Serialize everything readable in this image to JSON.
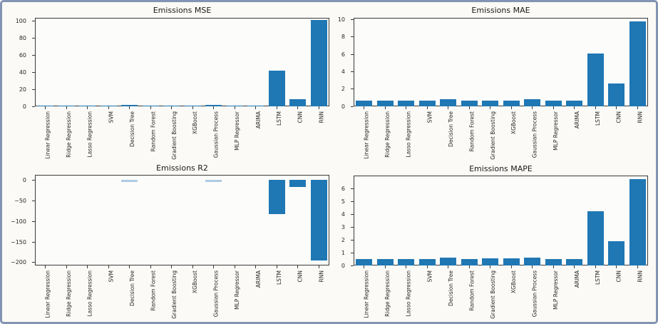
{
  "figure": {
    "border_color": "#8394b3",
    "background_color": "#fbfaf6",
    "bar_color": "#1f77b4",
    "light_bar_color": "#aecbe5",
    "spine_color": "#3a3a3a",
    "text_color": "#262626"
  },
  "chart_data": [
    {
      "type": "bar",
      "title": "Emissions MSE",
      "categories": [
        "Linear Regression",
        "Ridge Regression",
        "Lasso Regression",
        "SVM",
        "Decision Tree",
        "Random Forest",
        "Gradient Boosting",
        "XGBoost",
        "Gaussian Process",
        "MLP Regressor",
        "ARIMA",
        "LSTM",
        "CNN",
        "RNN"
      ],
      "values": [
        0.8,
        0.8,
        0.8,
        0.8,
        1.3,
        0.8,
        0.8,
        0.8,
        1.3,
        0.8,
        0.8,
        42,
        8,
        101
      ],
      "yticks": [
        0,
        20,
        40,
        60,
        80,
        100
      ],
      "ylim": [
        0,
        103.5
      ],
      "grid": false,
      "legend": "none"
    },
    {
      "type": "bar",
      "title": "Emissions MAE",
      "categories": [
        "Linear Regression",
        "Ridge Regression",
        "Lasso Regression",
        "SVM",
        "Decision Tree",
        "Random Forest",
        "Gradient Boosting",
        "XGBoost",
        "Gaussian Process",
        "MLP Regressor",
        "ARIMA",
        "LSTM",
        "CNN",
        "RNN"
      ],
      "values": [
        0.65,
        0.65,
        0.7,
        0.7,
        0.85,
        0.7,
        0.7,
        0.7,
        0.85,
        0.7,
        0.7,
        6.1,
        2.6,
        9.8
      ],
      "yticks": [
        0,
        2,
        4,
        6,
        8,
        10
      ],
      "ylim": [
        0,
        10.2
      ],
      "grid": false,
      "legend": "none"
    },
    {
      "type": "bar",
      "title": "Emissions R2",
      "categories": [
        "Linear Regression",
        "Ridge Regression",
        "Lasso Regression",
        "SVM",
        "Decision Tree",
        "Random Forest",
        "Gradient Boosting",
        "XGBoost",
        "Gaussian Process",
        "MLP Regressor",
        "ARIMA",
        "LSTM",
        "CNN",
        "RNN"
      ],
      "values": [
        0,
        0,
        0,
        0,
        -4,
        0,
        0,
        0,
        -4,
        0,
        0,
        -82,
        -17,
        -195
      ],
      "light_value_indices": [
        4,
        8
      ],
      "yticks": [
        0,
        -50,
        -100,
        -150,
        -200
      ],
      "ylim": [
        -207,
        12.6
      ],
      "grid": false,
      "legend": "none"
    },
    {
      "type": "bar",
      "title": "Emissions MAPE",
      "categories": [
        "Linear Regression",
        "Ridge Regression",
        "Lasso Regression",
        "SVM",
        "Decision Tree",
        "Random Forest",
        "Gradient Boosting",
        "XGBoost",
        "Gaussian Process",
        "MLP Regressor",
        "ARIMA",
        "LSTM",
        "CNN",
        "RNN"
      ],
      "values": [
        0.48,
        0.48,
        0.5,
        0.5,
        0.64,
        0.5,
        0.54,
        0.54,
        0.6,
        0.5,
        0.5,
        4.2,
        1.9,
        6.7
      ],
      "yticks": [
        0,
        1,
        2,
        3,
        4,
        5,
        6
      ],
      "ylim": [
        0,
        7.0
      ],
      "grid": false,
      "legend": "none"
    }
  ]
}
